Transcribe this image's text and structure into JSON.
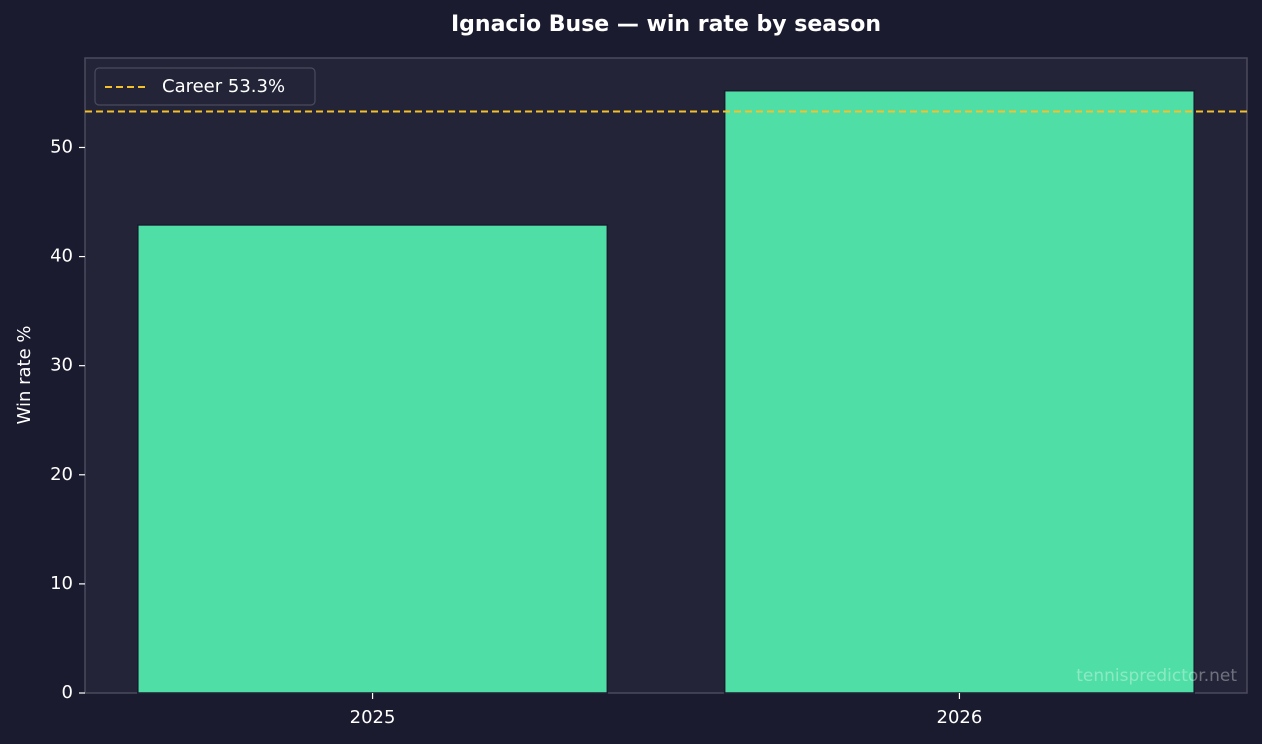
{
  "chart_data": {
    "type": "bar",
    "title": "Ignacio Buse — win rate by season",
    "ylabel": "Win rate %",
    "categories": [
      "2025",
      "2026"
    ],
    "values": [
      42.9,
      55.2
    ],
    "color": "#4fdea5",
    "ylim": [
      0,
      58.2
    ],
    "yticks": [
      0,
      10,
      20,
      30,
      40,
      50
    ],
    "reference_line": {
      "value": 53.3,
      "label": "Career 53.3%",
      "color": "#f5c02a"
    },
    "legend": "upper left",
    "watermark": "tennispredictor.net"
  }
}
